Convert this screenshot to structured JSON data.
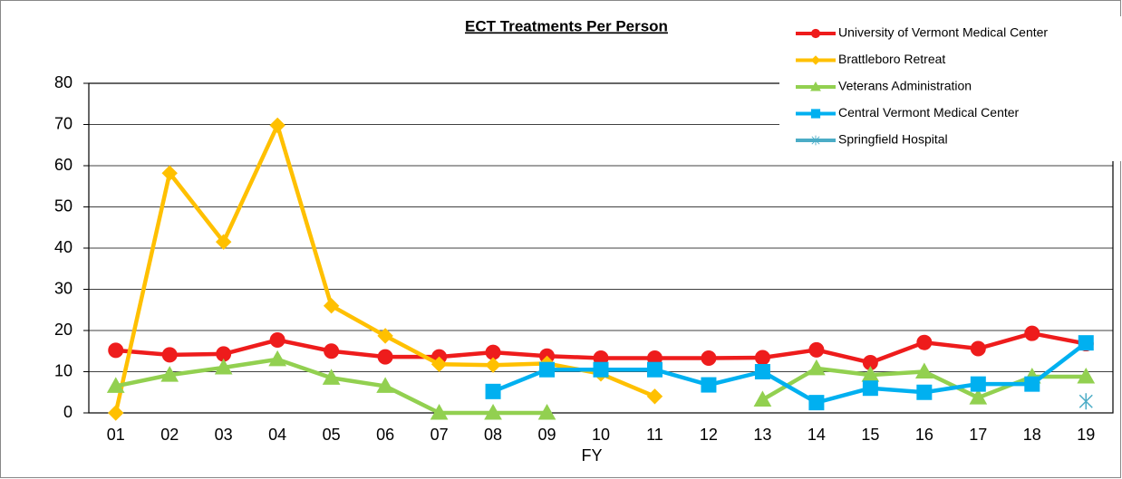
{
  "chart_data": {
    "type": "line",
    "title": "ECT Treatments Per Person",
    "x_label": "FY",
    "categories": [
      "01",
      "02",
      "03",
      "04",
      "05",
      "06",
      "07",
      "08",
      "09",
      "10",
      "11",
      "12",
      "13",
      "14",
      "15",
      "16",
      "17",
      "18",
      "19"
    ],
    "ylim": [
      0,
      80
    ],
    "yticks": [
      0,
      10,
      20,
      30,
      40,
      50,
      60,
      70,
      80
    ],
    "grid": true,
    "legend": "top-right",
    "series": [
      {
        "name": "University of Vermont Medical Center",
        "color": "#ee1c1c",
        "marker": "circle",
        "values": [
          15.2,
          14.1,
          14.3,
          17.7,
          15.0,
          13.6,
          13.6,
          14.7,
          13.8,
          13.3,
          13.3,
          13.3,
          13.4,
          15.3,
          12.2,
          17.1,
          15.6,
          19.3,
          16.8
        ]
      },
      {
        "name": "Brattleboro Retreat",
        "color": "#ffc000",
        "marker": "diamond",
        "values": [
          0,
          58.2,
          41.5,
          69.8,
          26.0,
          18.7,
          11.8,
          11.6,
          12.0,
          9.5,
          4.0,
          null,
          null,
          null,
          null,
          null,
          null,
          null,
          null
        ]
      },
      {
        "name": "Veterans Administration",
        "color": "#92d050",
        "marker": "triangle",
        "values": [
          6.5,
          9.2,
          11.0,
          13.0,
          8.5,
          6.5,
          0,
          0,
          0,
          null,
          null,
          null,
          3.2,
          10.8,
          9.2,
          10.0,
          3.7,
          8.8,
          8.8
        ]
      },
      {
        "name": "Central Vermont Medical Center",
        "color": "#00b0f0",
        "marker": "square",
        "values": [
          null,
          null,
          null,
          null,
          null,
          null,
          null,
          5.2,
          10.5,
          10.5,
          10.5,
          6.8,
          10.0,
          2.5,
          6.0,
          5.0,
          7.0,
          7.0,
          17.0
        ]
      },
      {
        "name": "Springfield Hospital",
        "color": "#4bacc6",
        "marker": "star",
        "values": [
          null,
          null,
          null,
          null,
          null,
          null,
          null,
          null,
          null,
          null,
          null,
          null,
          null,
          null,
          null,
          null,
          null,
          null,
          2.8
        ]
      }
    ]
  }
}
